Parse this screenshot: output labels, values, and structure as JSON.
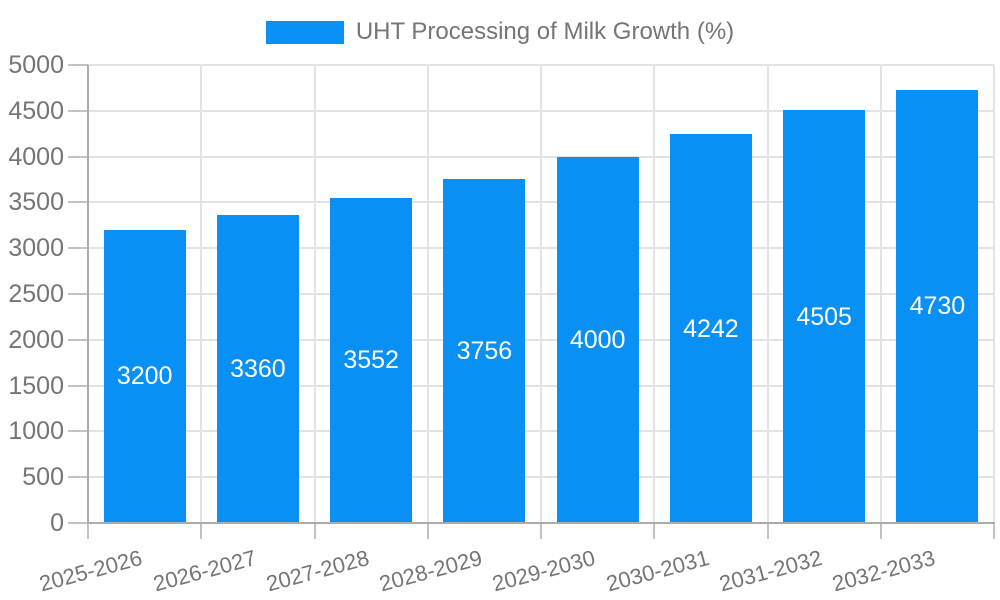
{
  "chart_data": {
    "type": "bar",
    "title": "UHT Processing of Milk Growth (%)",
    "categories": [
      "2025-2026",
      "2026-2027",
      "2027-2028",
      "2028-2029",
      "2029-2030",
      "2030-2031",
      "2031-2032",
      "2032-2033"
    ],
    "values": [
      3200,
      3360,
      3552,
      3756,
      4000,
      4242,
      4505,
      4730
    ],
    "xlabel": "",
    "ylabel": "",
    "ylim": [
      0,
      5000
    ],
    "ytick_step": 500,
    "yticks": [
      0,
      500,
      1000,
      1500,
      2000,
      2500,
      3000,
      3500,
      4000,
      4500,
      5000
    ],
    "grid": true,
    "legend_position": "top-center",
    "value_labels_inside_bars": true,
    "colors": {
      "bar": "#0990F5",
      "value_label": "#FFFFFF",
      "tick_label": "#757575",
      "legend_text": "#757575",
      "gridline": "#E3E3E3",
      "axis_line": "#ABABAB",
      "tick_mark": "#C2C2C2",
      "background": "#FFFFFF"
    }
  }
}
